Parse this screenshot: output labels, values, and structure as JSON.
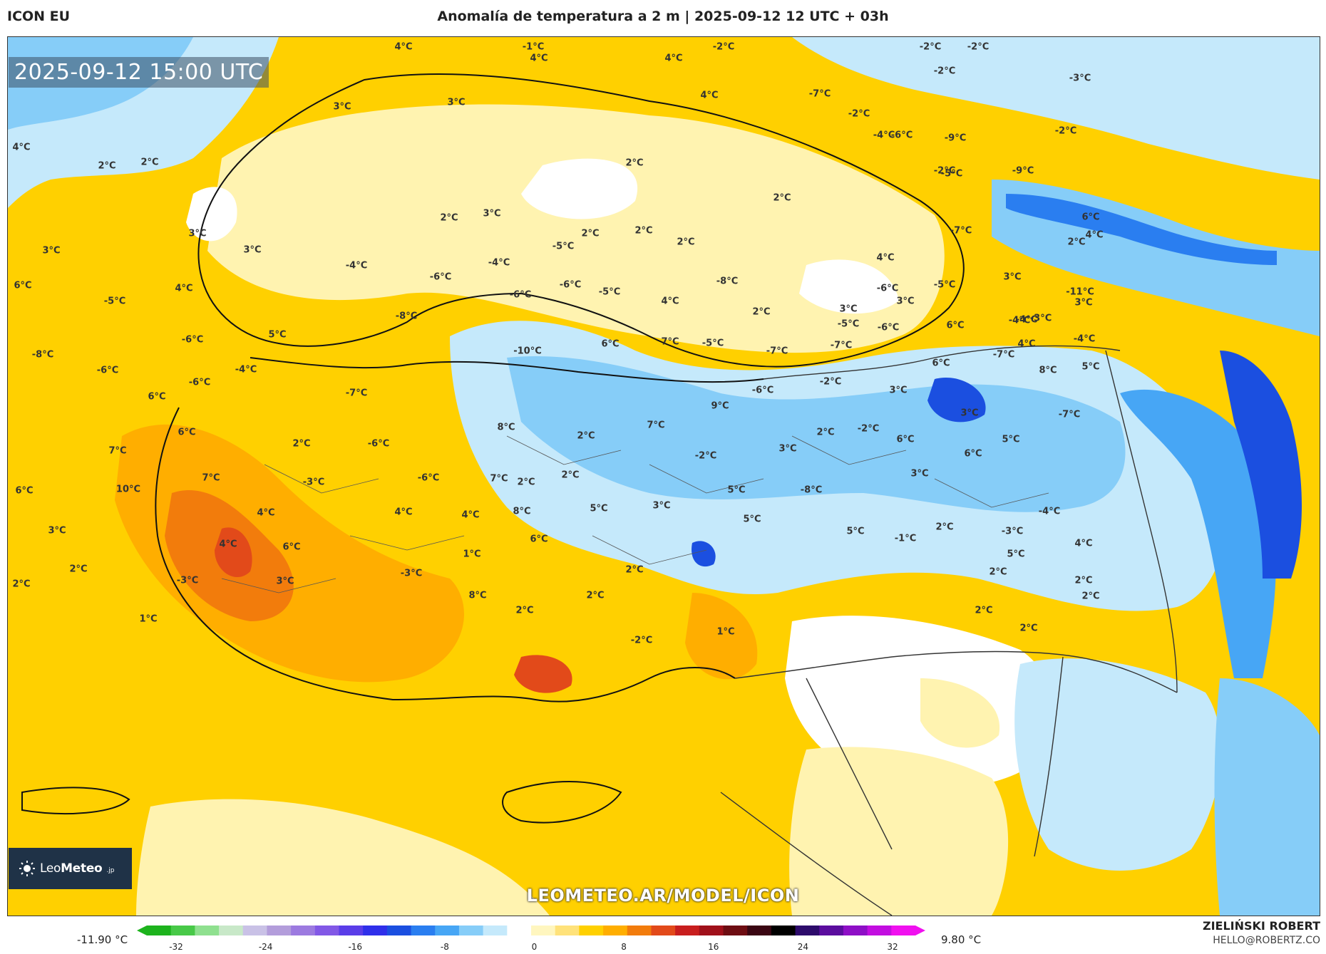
{
  "header": {
    "model": "ICON EU",
    "title": "Anomalía de temperatura a 2 m | 2025-09-12 12 UTC + 03h"
  },
  "map": {
    "timestamp": "2025-09-12 15:00 UTC",
    "watermark": "LEOMETEO.AR/MODEL/ICON",
    "logo_text_light": "Leo",
    "logo_text_bold": "Meteo",
    "logo_sub": ".jp",
    "labels": [
      "4°C",
      "-1°C",
      "4°C",
      "-2°C",
      "-2°C",
      "-2°C",
      "-2°C",
      "3°C",
      "3°C",
      "4°C",
      "-3°C",
      "2°C",
      "-7°C",
      "4°C",
      "4°C",
      "-2°C",
      "2°C",
      "-4°C",
      "-6°C",
      "-9°C",
      "-2°C",
      "-2°C",
      "-9°C",
      "2°C",
      "-5°C",
      "2°C",
      "3°C",
      "2°C",
      "2°C",
      "2°C",
      "-7°C",
      "6°C",
      "4°C",
      "2°C",
      "3°C",
      "3°C",
      "3°C",
      "2°C",
      "4°C",
      "-8°C",
      "-6°C",
      "-5°C",
      "-11°C",
      "3°C",
      "6°C",
      "4°C",
      "-5°C",
      "-4°C",
      "-4°C",
      "-5°C",
      "-6°C",
      "-6°C",
      "-6°C",
      "-5°C",
      "4°C",
      "3°C",
      "2°C",
      "3°C",
      "-3°C",
      "-4°C",
      "-4°C",
      "-4°C",
      "-5°C",
      "-6°C",
      "6°C",
      "3°C",
      "4°C",
      "-7°C",
      "-7°C",
      "-8°C",
      "-6°C",
      "5°C",
      "-5°C",
      "7°C",
      "6°C",
      "-10°C",
      "-8°C",
      "-6°C",
      "-4°C",
      "-7°C",
      "8°C",
      "6°C",
      "5°C",
      "-2°C",
      "3°C",
      "-6°C",
      "-6°C",
      "-7°C",
      "6°C",
      "9°C",
      "7°C",
      "3°C",
      "-7°C",
      "2°C",
      "2°C",
      "-2°C",
      "5°C",
      "8°C",
      "6°C",
      "7°C",
      "2°C",
      "-6°C",
      "6°C",
      "6°C",
      "-2°C",
      "2°C",
      "3°C",
      "-6°C",
      "3°C",
      "7°C",
      "7°C",
      "-3°C",
      "6°C",
      "10°C",
      "2°C",
      "-8°C",
      "5°C",
      "5°C",
      "3°C",
      "5°C",
      "8°C",
      "4°C",
      "4°C",
      "4°C",
      "-4°C",
      "5°C",
      "-1°C",
      "6°C",
      "2°C",
      "-3°C",
      "4°C",
      "6°C",
      "5°C",
      "4°C",
      "3°C",
      "1°C",
      "2°C",
      "2°C",
      "2°C",
      "-3°C",
      "-3°C",
      "3°C",
      "2°C",
      "8°C",
      "2°C",
      "2°C",
      "2°C",
      "2°C",
      "2°C",
      "2°C",
      "1°C",
      "1°C",
      "-2°C"
    ]
  },
  "colorbar": {
    "min_label": "-11.90 °C",
    "max_label": "9.80 °C",
    "ticks": [
      "-32",
      "-24",
      "-16",
      "-8",
      "0",
      "8",
      "16",
      "24",
      "32"
    ],
    "colors": [
      "#1db31d",
      "#48c948",
      "#8fe08f",
      "#c8e8c8",
      "#c9c1e6",
      "#b39ddb",
      "#9c7ae0",
      "#8258e6",
      "#5a3de8",
      "#2f2fea",
      "#1b4fe0",
      "#2a7ef0",
      "#47a6f5",
      "#86cdf8",
      "#c5e9fb",
      "#ffffff",
      "#fff6bf",
      "#ffe27a",
      "#ffd000",
      "#ffae00",
      "#f27c0c",
      "#e24a1a",
      "#c81e1e",
      "#a0101a",
      "#6e0d12",
      "#3a0612",
      "#000000",
      "#2d0b6b",
      "#5b0d9e",
      "#8e0fc6",
      "#c20ee0",
      "#f010ef"
    ]
  },
  "credit": {
    "name": "ZIELIŃSKI ROBERT",
    "email": "HELLO@ROBERTZ.CO"
  }
}
